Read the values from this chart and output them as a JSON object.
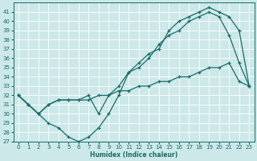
{
  "xlabel": "Humidex (Indice chaleur)",
  "xlim": [
    -0.5,
    23.5
  ],
  "ylim": [
    27,
    42
  ],
  "yticks": [
    27,
    28,
    29,
    30,
    31,
    32,
    33,
    34,
    35,
    36,
    37,
    38,
    39,
    40,
    41
  ],
  "xticks": [
    0,
    1,
    2,
    3,
    4,
    5,
    6,
    7,
    8,
    9,
    10,
    11,
    12,
    13,
    14,
    15,
    16,
    17,
    18,
    19,
    20,
    21,
    22,
    23
  ],
  "bg_color": "#cce8e8",
  "grid_color": "#b0d0d0",
  "line_color": "#1a6b6b",
  "curve1_x": [
    0,
    1,
    2,
    3,
    4,
    5,
    6,
    7,
    8,
    9,
    10,
    11,
    12,
    13,
    14,
    15,
    16,
    17,
    18,
    19,
    20,
    21,
    22,
    23
  ],
  "curve1_y": [
    32.0,
    31.0,
    30.0,
    29.0,
    28.5,
    27.5,
    27.0,
    27.5,
    28.5,
    30.0,
    32.0,
    34.5,
    35.0,
    36.0,
    37.5,
    38.5,
    39.0,
    40.0,
    40.5,
    41.0,
    40.5,
    38.5,
    35.5,
    33.0
  ],
  "curve2_x": [
    0,
    1,
    2,
    3,
    4,
    5,
    6,
    7,
    8,
    9,
    10,
    11,
    12,
    13,
    14,
    15,
    16,
    17,
    18,
    19,
    20,
    21,
    22,
    23
  ],
  "curve2_y": [
    32.0,
    31.0,
    30.0,
    31.0,
    31.5,
    31.5,
    31.5,
    32.0,
    30.0,
    32.0,
    33.0,
    34.5,
    35.5,
    36.5,
    37.0,
    39.0,
    40.0,
    40.5,
    41.0,
    41.5,
    41.0,
    40.5,
    39.0,
    33.0
  ],
  "curve3_x": [
    0,
    1,
    2,
    3,
    4,
    5,
    6,
    7,
    8,
    9,
    10,
    11,
    12,
    13,
    14,
    15,
    16,
    17,
    18,
    19,
    20,
    21,
    22,
    23
  ],
  "curve3_y": [
    32.0,
    31.0,
    30.0,
    31.0,
    31.5,
    31.5,
    31.5,
    31.5,
    32.0,
    32.0,
    32.5,
    32.5,
    33.0,
    33.0,
    33.5,
    33.5,
    34.0,
    34.0,
    34.5,
    35.0,
    35.0,
    35.5,
    33.5,
    33.0
  ]
}
